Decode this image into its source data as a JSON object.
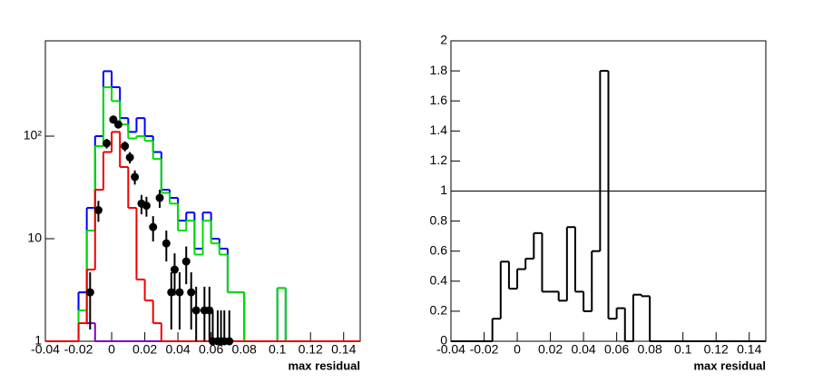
{
  "chart_data": [
    {
      "type": "histogram",
      "xlabel": "max residual",
      "log_y": true,
      "xlim": [
        -0.04,
        0.15
      ],
      "ylim": [
        1,
        850
      ],
      "xticks": [
        -0.04,
        -0.02,
        0,
        0.02,
        0.04,
        0.06,
        0.08,
        0.1,
        0.12,
        0.14
      ],
      "yticks": [
        1,
        10,
        {
          "value": 100,
          "label": "10²"
        }
      ],
      "bins": [
        -0.04,
        -0.035,
        -0.03,
        -0.025,
        -0.02,
        -0.015,
        -0.01,
        -0.005,
        0,
        0.005,
        0.01,
        0.015,
        0.02,
        0.025,
        0.03,
        0.035,
        0.04,
        0.045,
        0.05,
        0.055,
        0.06,
        0.065,
        0.07,
        0.075,
        0.08,
        0.085,
        0.09,
        0.095,
        0.1,
        0.105,
        0.11,
        0.115,
        0.12,
        0.125,
        0.13,
        0.135,
        0.14,
        0.145,
        0.15
      ],
      "series": [
        {
          "color": "#7a00c8",
          "values": [
            0,
            0,
            0,
            0,
            3,
            1.5,
            0,
            0,
            0,
            0,
            0,
            0,
            0,
            0,
            0,
            0,
            0,
            0,
            0,
            0,
            0,
            0,
            0,
            0,
            0,
            0,
            0,
            0,
            0,
            0,
            0,
            0,
            0,
            0,
            0,
            0,
            0,
            0
          ]
        },
        {
          "color": "#0000ff",
          "values": [
            0,
            0,
            0,
            0,
            3,
            20,
            100,
            430,
            300,
            150,
            110,
            150,
            100,
            70,
            30,
            25,
            15,
            18,
            8,
            18,
            10,
            8,
            3,
            3,
            0,
            0,
            0,
            0,
            3.3,
            0,
            0,
            0,
            0,
            0,
            0,
            0,
            0,
            0
          ]
        },
        {
          "color": "#00dd00",
          "values": [
            0,
            0,
            0,
            0,
            2,
            12,
            80,
            300,
            220,
            130,
            95,
            100,
            90,
            60,
            28,
            22,
            12,
            15,
            7,
            15,
            9,
            7,
            3,
            3,
            0,
            0,
            0,
            0,
            3.3,
            0,
            0,
            0,
            0,
            0,
            0,
            0,
            0,
            0
          ]
        },
        {
          "color": "#ee0000",
          "values": [
            0,
            0,
            0,
            0,
            1.5,
            5,
            30,
            70,
            110,
            50,
            20,
            4,
            2.5,
            1.5,
            0,
            0,
            0,
            0,
            0,
            0,
            0,
            0,
            0,
            0,
            0,
            0,
            0,
            0,
            0,
            0,
            0,
            0,
            0,
            0,
            0,
            0,
            0,
            0
          ]
        }
      ],
      "points": {
        "color": "#000000",
        "x": [
          -0.013,
          -0.008,
          -0.003,
          0.001,
          0.004,
          0.008,
          0.011,
          0.014,
          0.018,
          0.021,
          0.025,
          0.029,
          0.033,
          0.036,
          0.038,
          0.041,
          0.045,
          0.048,
          0.051,
          0.056,
          0.059,
          0.061,
          0.064,
          0.066,
          0.068,
          0.071
        ],
        "values": [
          3,
          19,
          85,
          145,
          130,
          80,
          62,
          40,
          22,
          21,
          13,
          25,
          9,
          3,
          5,
          3,
          6,
          3,
          2,
          2,
          2,
          1,
          1,
          1,
          1,
          1
        ],
        "errors": [
          1.7,
          4.4,
          9.2,
          12,
          11.4,
          8.9,
          7.9,
          6.3,
          4.7,
          4.6,
          3.6,
          5,
          3,
          1.7,
          2.2,
          1.7,
          2.4,
          1.7,
          1.4,
          1.4,
          1.4,
          1,
          1,
          1,
          1,
          1
        ]
      }
    },
    {
      "type": "histogram",
      "xlabel": "max residual",
      "log_y": false,
      "xlim": [
        -0.04,
        0.15
      ],
      "ylim": [
        0,
        2
      ],
      "xticks": [
        -0.04,
        -0.02,
        0,
        0.02,
        0.04,
        0.06,
        0.08,
        0.1,
        0.12,
        0.14
      ],
      "yticks": [
        0,
        0.2,
        0.4,
        0.6,
        0.8,
        1,
        1.2,
        1.4,
        1.6,
        1.8,
        2
      ],
      "hline": 1,
      "bins": [
        -0.04,
        -0.035,
        -0.03,
        -0.025,
        -0.02,
        -0.015,
        -0.01,
        -0.005,
        0,
        0.005,
        0.01,
        0.015,
        0.02,
        0.025,
        0.03,
        0.035,
        0.04,
        0.045,
        0.05,
        0.055,
        0.06,
        0.065,
        0.07,
        0.075,
        0.08,
        0.085,
        0.09,
        0.095,
        0.1,
        0.105,
        0.11,
        0.115,
        0.12,
        0.125,
        0.13,
        0.135,
        0.14,
        0.145,
        0.15
      ],
      "series": [
        {
          "color": "#000000",
          "values": [
            0,
            0,
            0,
            0,
            0,
            0.15,
            0.53,
            0.35,
            0.48,
            0.55,
            0.72,
            0.33,
            0.33,
            0.27,
            0.76,
            0.33,
            0.2,
            0.6,
            1.8,
            0.15,
            0.22,
            0,
            0.31,
            0.3,
            0,
            0,
            0,
            0,
            0,
            0,
            0,
            0,
            0,
            0,
            0,
            0,
            0,
            0
          ]
        }
      ]
    }
  ]
}
